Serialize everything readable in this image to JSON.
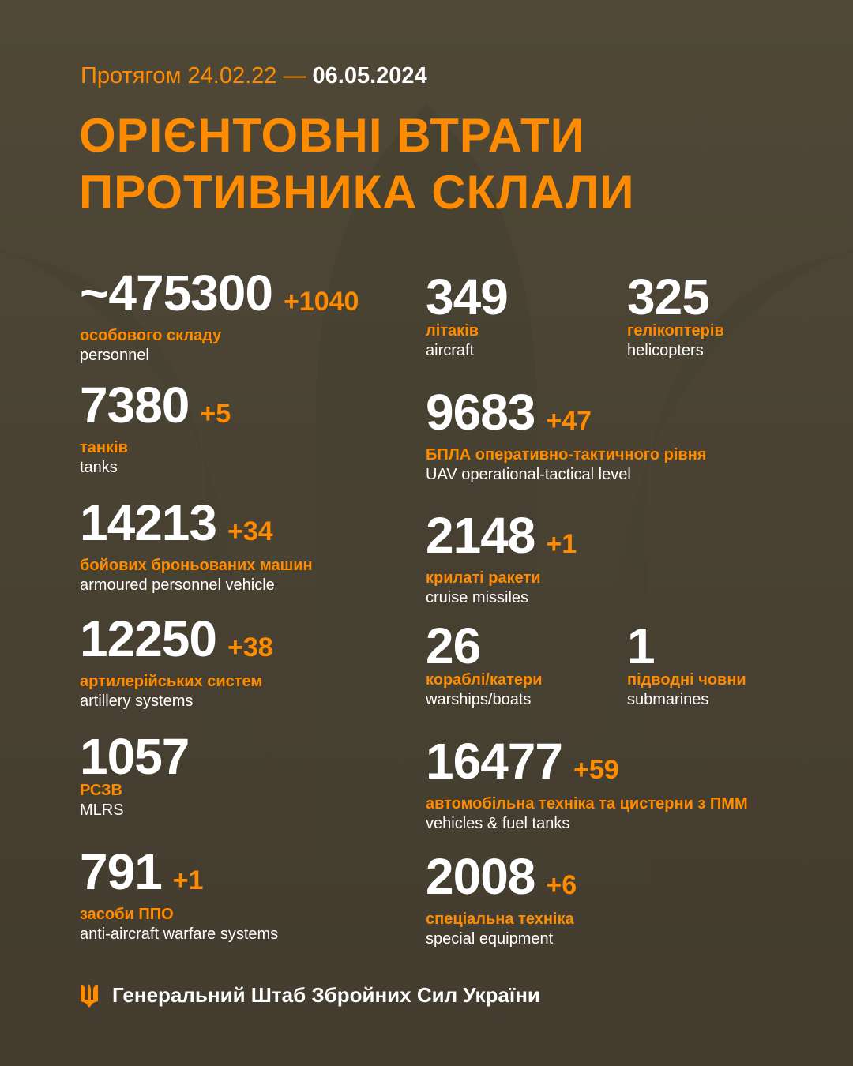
{
  "colors": {
    "accent": "#ff8c00",
    "background": "#4a4334",
    "text": "#ffffff"
  },
  "header": {
    "period_prefix": "Протягом 24.02.22 —",
    "period_end": "06.05.2024",
    "title_line1": "ОРІЄНТОВНІ ВТРАТИ",
    "title_line2": "ПРОТИВНИКА СКЛАЛИ"
  },
  "stats": [
    {
      "value": "~475300",
      "delta": "+1040",
      "ua": "особового складу",
      "en": "personnel"
    },
    {
      "value": "7380",
      "delta": "+5",
      "ua": "танків",
      "en": "tanks"
    },
    {
      "value": "14213",
      "delta": "+34",
      "ua": "бойових броньованих машин",
      "en": "armoured personnel vehicle"
    },
    {
      "value": "12250",
      "delta": "+38",
      "ua": "артилерійських систем",
      "en": "artillery systems"
    },
    {
      "value": "1057",
      "delta": "",
      "ua": "РСЗВ",
      "en": "MLRS"
    },
    {
      "value": "791",
      "delta": "+1",
      "ua": "засоби ППО",
      "en": "anti-aircraft warfare systems"
    },
    {
      "value": "349",
      "delta": "",
      "ua": "літаків",
      "en": "aircraft"
    },
    {
      "value": "325",
      "delta": "",
      "ua": "гелікоптерів",
      "en": "helicopters"
    },
    {
      "value": "9683",
      "delta": "+47",
      "ua": "БПЛА оперативно-тактичного рівня",
      "en": "UAV operational-tactical level"
    },
    {
      "value": "2148",
      "delta": "+1",
      "ua": "крилаті ракети",
      "en": "cruise missiles"
    },
    {
      "value": "26",
      "delta": "",
      "ua": "кораблі/катери",
      "en": "warships/boats"
    },
    {
      "value": "1",
      "delta": "",
      "ua": "підводні човни",
      "en": "submarines"
    },
    {
      "value": "16477",
      "delta": "+59",
      "ua": "автомобільна техніка та цистерни з ПММ",
      "en": "vehicles & fuel tanks"
    },
    {
      "value": "2008",
      "delta": "+6",
      "ua": "спеціальна техніка",
      "en": "special equipment"
    }
  ],
  "footer": {
    "icon": "trident-icon",
    "org": "Генеральний Штаб Збройних Сил України"
  }
}
